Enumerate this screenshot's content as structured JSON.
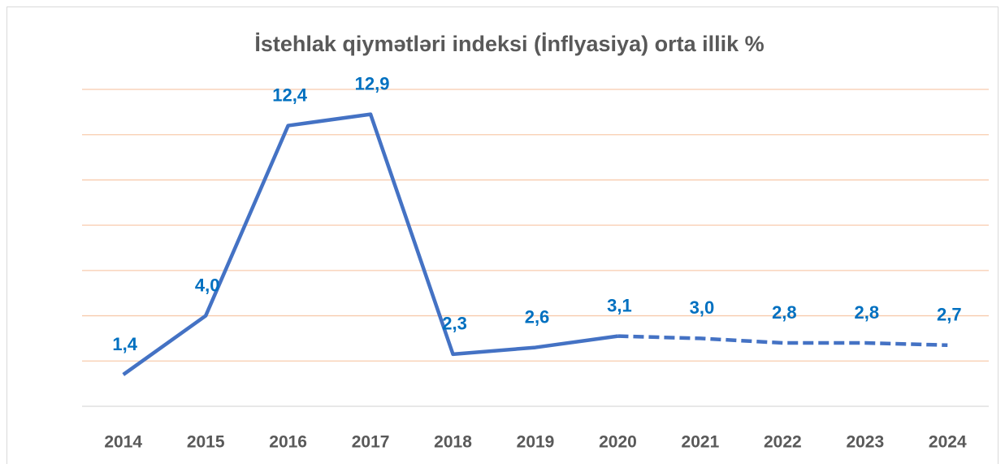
{
  "chart_data": {
    "type": "line",
    "title": "İstehlak qiymətləri indeksi (İnflyasiya) orta illik %",
    "categories": [
      "2014",
      "2015",
      "2016",
      "2017",
      "2018",
      "2019",
      "2020",
      "2021",
      "2022",
      "2023",
      "2024"
    ],
    "values": [
      1.4,
      4.0,
      12.4,
      12.9,
      2.3,
      2.6,
      3.1,
      3.0,
      2.8,
      2.8,
      2.7
    ],
    "value_labels": [
      "1,4",
      "4,0",
      "12,4",
      "12,9",
      "2,3",
      "2,6",
      "3,1",
      "3,0",
      "2,8",
      "2,8",
      "2,7"
    ],
    "color": "#4472c4",
    "dashed_from": "2020",
    "ylim": [
      0,
      14
    ],
    "yticks": [
      0,
      2,
      4,
      6,
      8,
      10,
      12,
      14
    ],
    "grid": true
  }
}
